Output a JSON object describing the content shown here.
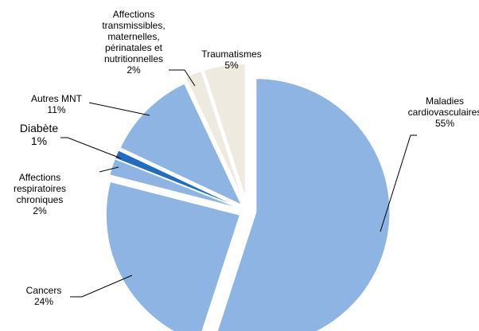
{
  "chart_data": {
    "type": "pie",
    "title": "",
    "slices": [
      {
        "name": "Maladies cardiovasculaires",
        "value": 55,
        "label_lines": [
          "Maladies",
          "cardiovasculaires",
          "55%"
        ],
        "color": "#8EB4E3"
      },
      {
        "name": "Cancers",
        "value": 24,
        "label_lines": [
          "Cancers",
          "24%"
        ],
        "color": "#8EB4E3"
      },
      {
        "name": "Affections respiratoires chroniques",
        "value": 2,
        "label_lines": [
          "Affections",
          "respiratoires",
          "chroniques",
          "2%"
        ],
        "color": "#8EB4E3"
      },
      {
        "name": "Diabète",
        "value": 1,
        "label_lines": [
          "Diabète",
          "1%"
        ],
        "color": "#1F6CC4",
        "emphasis": true
      },
      {
        "name": "Autres MNT",
        "value": 11,
        "label_lines": [
          "Autres MNT",
          "11%"
        ],
        "color": "#8EB4E3"
      },
      {
        "name": "Affections transmissibles, maternelles, périnatales et nutritionnelles",
        "value": 2,
        "label_lines": [
          "Affections",
          "transmissibles,",
          "maternelles,",
          "périnatales et",
          "nutritionnelles",
          "2%"
        ],
        "color": "#EEEADF"
      },
      {
        "name": "Traumatismes",
        "value": 5,
        "label_lines": [
          "Traumatismes",
          "5%"
        ],
        "color": "#EEEADF"
      }
    ],
    "legend": "none"
  }
}
